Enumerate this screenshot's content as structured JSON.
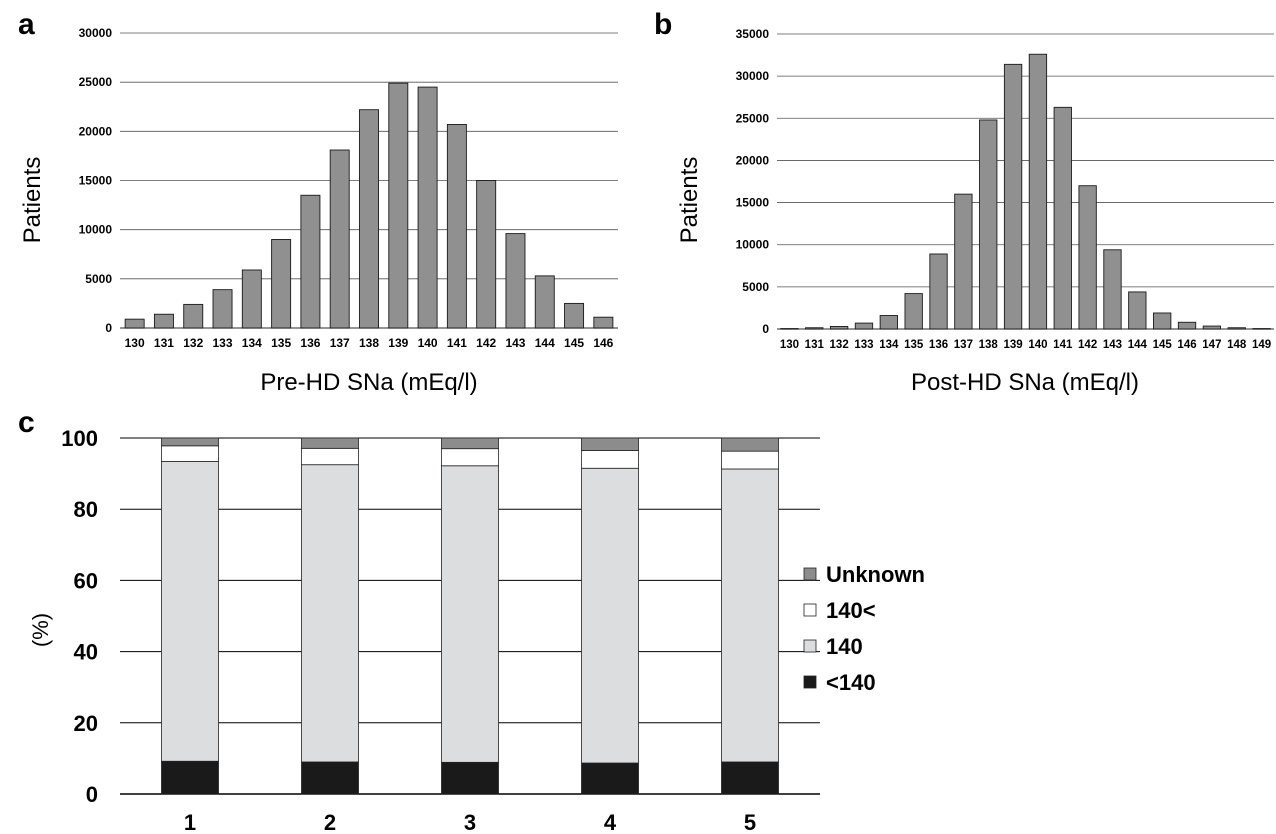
{
  "colors": {
    "bar_gray": "#909090",
    "unknown": "#8c8c8c",
    "above_140": "#ffffff",
    "eq_140": "#dcdddf",
    "below_140": "#1a1a1a",
    "grid": "#000000"
  },
  "chart_data": [
    {
      "panel": "a",
      "type": "bar",
      "xlabel": "Pre-HD SNa (mEq/l)",
      "ylabel": "Patients",
      "ylim": [
        0,
        30000
      ],
      "yticks": [
        0,
        5000,
        10000,
        15000,
        20000,
        25000,
        30000
      ],
      "grid": true,
      "categories": [
        "130",
        "131",
        "132",
        "133",
        "134",
        "135",
        "136",
        "137",
        "138",
        "139",
        "140",
        "141",
        "142",
        "143",
        "144",
        "145",
        "146"
      ],
      "values": [
        900,
        1400,
        2400,
        3900,
        5900,
        9000,
        13500,
        18100,
        22200,
        24900,
        24500,
        20700,
        15000,
        9600,
        5300,
        2500,
        1100
      ]
    },
    {
      "panel": "b",
      "type": "bar",
      "xlabel": "Post-HD SNa (mEq/l)",
      "ylabel": "Patients",
      "ylim": [
        0,
        35000
      ],
      "yticks": [
        0,
        5000,
        10000,
        15000,
        20000,
        25000,
        30000,
        35000
      ],
      "grid": true,
      "categories": [
        "130",
        "131",
        "132",
        "133",
        "134",
        "135",
        "136",
        "137",
        "138",
        "139",
        "140",
        "141",
        "142",
        "143",
        "144",
        "145",
        "146",
        "147",
        "148",
        "149"
      ],
      "values": [
        50,
        150,
        300,
        700,
        1600,
        4200,
        8900,
        16000,
        24800,
        31400,
        32600,
        26300,
        17000,
        9400,
        4400,
        1900,
        800,
        350,
        150,
        50
      ]
    },
    {
      "panel": "c",
      "type": "bar",
      "stacked": true,
      "xlabel": "",
      "ylabel": "(%)",
      "ylim": [
        0,
        100
      ],
      "yticks": [
        0,
        20,
        40,
        60,
        80,
        100
      ],
      "grid": true,
      "legend_position": "right",
      "categories": [
        "1",
        "2",
        "3",
        "4",
        "5"
      ],
      "series": [
        {
          "name": "<140",
          "color_key": "below_140",
          "values": [
            9.2,
            9.0,
            8.9,
            8.7,
            9.0
          ]
        },
        {
          "name": "140",
          "color_key": "eq_140",
          "values": [
            84.2,
            83.5,
            83.3,
            82.8,
            82.3
          ]
        },
        {
          "name": "140<",
          "color_key": "above_140",
          "values": [
            4.4,
            4.6,
            4.8,
            5.0,
            5.0
          ]
        },
        {
          "name": "Unknown",
          "color_key": "unknown",
          "values": [
            2.2,
            2.9,
            3.0,
            3.5,
            3.7
          ]
        }
      ],
      "legend_order": [
        "Unknown",
        "140<",
        "140",
        "<140"
      ]
    }
  ]
}
